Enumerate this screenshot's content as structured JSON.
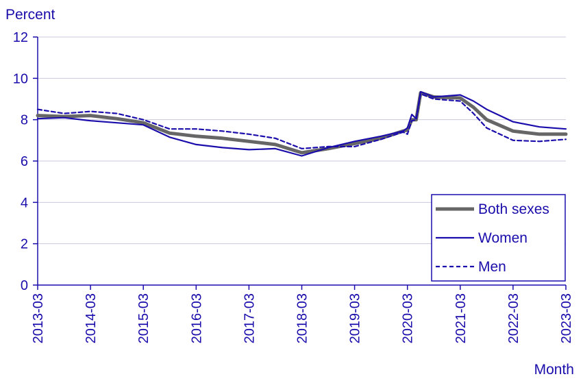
{
  "chart_data": {
    "type": "line",
    "ylabel": "Percent",
    "xlabel": "Month",
    "ylim": [
      0,
      12
    ],
    "y_ticks": [
      "0",
      "2",
      "4",
      "6",
      "8",
      "10",
      "12"
    ],
    "x_tick_labels": [
      "2013-03",
      "2014-03",
      "2015-03",
      "2016-03",
      "2017-03",
      "2018-03",
      "2019-03",
      "2020-03",
      "2021-03",
      "2022-03",
      "2023-03"
    ],
    "grid": "horizontal",
    "legend_position": "bottom-right",
    "colors": {
      "axis_text": "#1a0dab",
      "grid": "#c8c8dc",
      "both": "#666666",
      "women": "#1a0dab",
      "men": "#1a0dab"
    },
    "series": [
      {
        "name": "Both sexes",
        "points": [
          [
            "2013-03",
            8.2
          ],
          [
            "2013-09",
            8.15
          ],
          [
            "2014-03",
            8.2
          ],
          [
            "2014-09",
            8.05
          ],
          [
            "2015-03",
            7.85
          ],
          [
            "2015-09",
            7.35
          ],
          [
            "2016-03",
            7.2
          ],
          [
            "2016-09",
            7.1
          ],
          [
            "2017-03",
            6.95
          ],
          [
            "2017-09",
            6.8
          ],
          [
            "2018-03",
            6.4
          ],
          [
            "2018-09",
            6.6
          ],
          [
            "2019-03",
            6.85
          ],
          [
            "2019-09",
            7.1
          ],
          [
            "2020-02",
            7.45
          ],
          [
            "2020-03",
            7.5
          ],
          [
            "2020-04",
            8.0
          ],
          [
            "2020-05",
            8.0
          ],
          [
            "2020-06",
            9.3
          ],
          [
            "2020-09",
            9.1
          ],
          [
            "2021-03",
            9.05
          ],
          [
            "2021-06",
            8.6
          ],
          [
            "2021-09",
            8.0
          ],
          [
            "2022-03",
            7.45
          ],
          [
            "2022-09",
            7.3
          ],
          [
            "2023-03",
            7.3
          ]
        ]
      },
      {
        "name": "Women",
        "points": [
          [
            "2013-03",
            8.05
          ],
          [
            "2013-09",
            8.1
          ],
          [
            "2014-03",
            7.95
          ],
          [
            "2014-09",
            7.85
          ],
          [
            "2015-03",
            7.75
          ],
          [
            "2015-09",
            7.15
          ],
          [
            "2016-03",
            6.8
          ],
          [
            "2016-09",
            6.65
          ],
          [
            "2017-03",
            6.55
          ],
          [
            "2017-09",
            6.6
          ],
          [
            "2018-03",
            6.25
          ],
          [
            "2018-09",
            6.65
          ],
          [
            "2019-03",
            6.95
          ],
          [
            "2019-09",
            7.2
          ],
          [
            "2020-02",
            7.45
          ],
          [
            "2020-03",
            7.6
          ],
          [
            "2020-04",
            8.25
          ],
          [
            "2020-05",
            8.05
          ],
          [
            "2020-06",
            9.35
          ],
          [
            "2020-09",
            9.1
          ],
          [
            "2021-03",
            9.2
          ],
          [
            "2021-06",
            8.9
          ],
          [
            "2021-09",
            8.5
          ],
          [
            "2022-03",
            7.9
          ],
          [
            "2022-09",
            7.65
          ],
          [
            "2023-03",
            7.55
          ]
        ]
      },
      {
        "name": "Men",
        "points": [
          [
            "2013-03",
            8.5
          ],
          [
            "2013-09",
            8.3
          ],
          [
            "2014-03",
            8.4
          ],
          [
            "2014-09",
            8.3
          ],
          [
            "2015-03",
            8.0
          ],
          [
            "2015-09",
            7.55
          ],
          [
            "2016-03",
            7.55
          ],
          [
            "2016-09",
            7.45
          ],
          [
            "2017-03",
            7.3
          ],
          [
            "2017-09",
            7.1
          ],
          [
            "2018-03",
            6.6
          ],
          [
            "2018-09",
            6.7
          ],
          [
            "2019-03",
            6.7
          ],
          [
            "2019-09",
            7.05
          ],
          [
            "2020-02",
            7.4
          ],
          [
            "2020-03",
            7.3
          ],
          [
            "2020-04",
            7.95
          ],
          [
            "2020-05",
            8.0
          ],
          [
            "2020-06",
            9.25
          ],
          [
            "2020-09",
            9.0
          ],
          [
            "2021-03",
            8.9
          ],
          [
            "2021-06",
            8.3
          ],
          [
            "2021-09",
            7.6
          ],
          [
            "2022-03",
            7.0
          ],
          [
            "2022-09",
            6.95
          ],
          [
            "2023-03",
            7.05
          ]
        ]
      }
    ]
  }
}
